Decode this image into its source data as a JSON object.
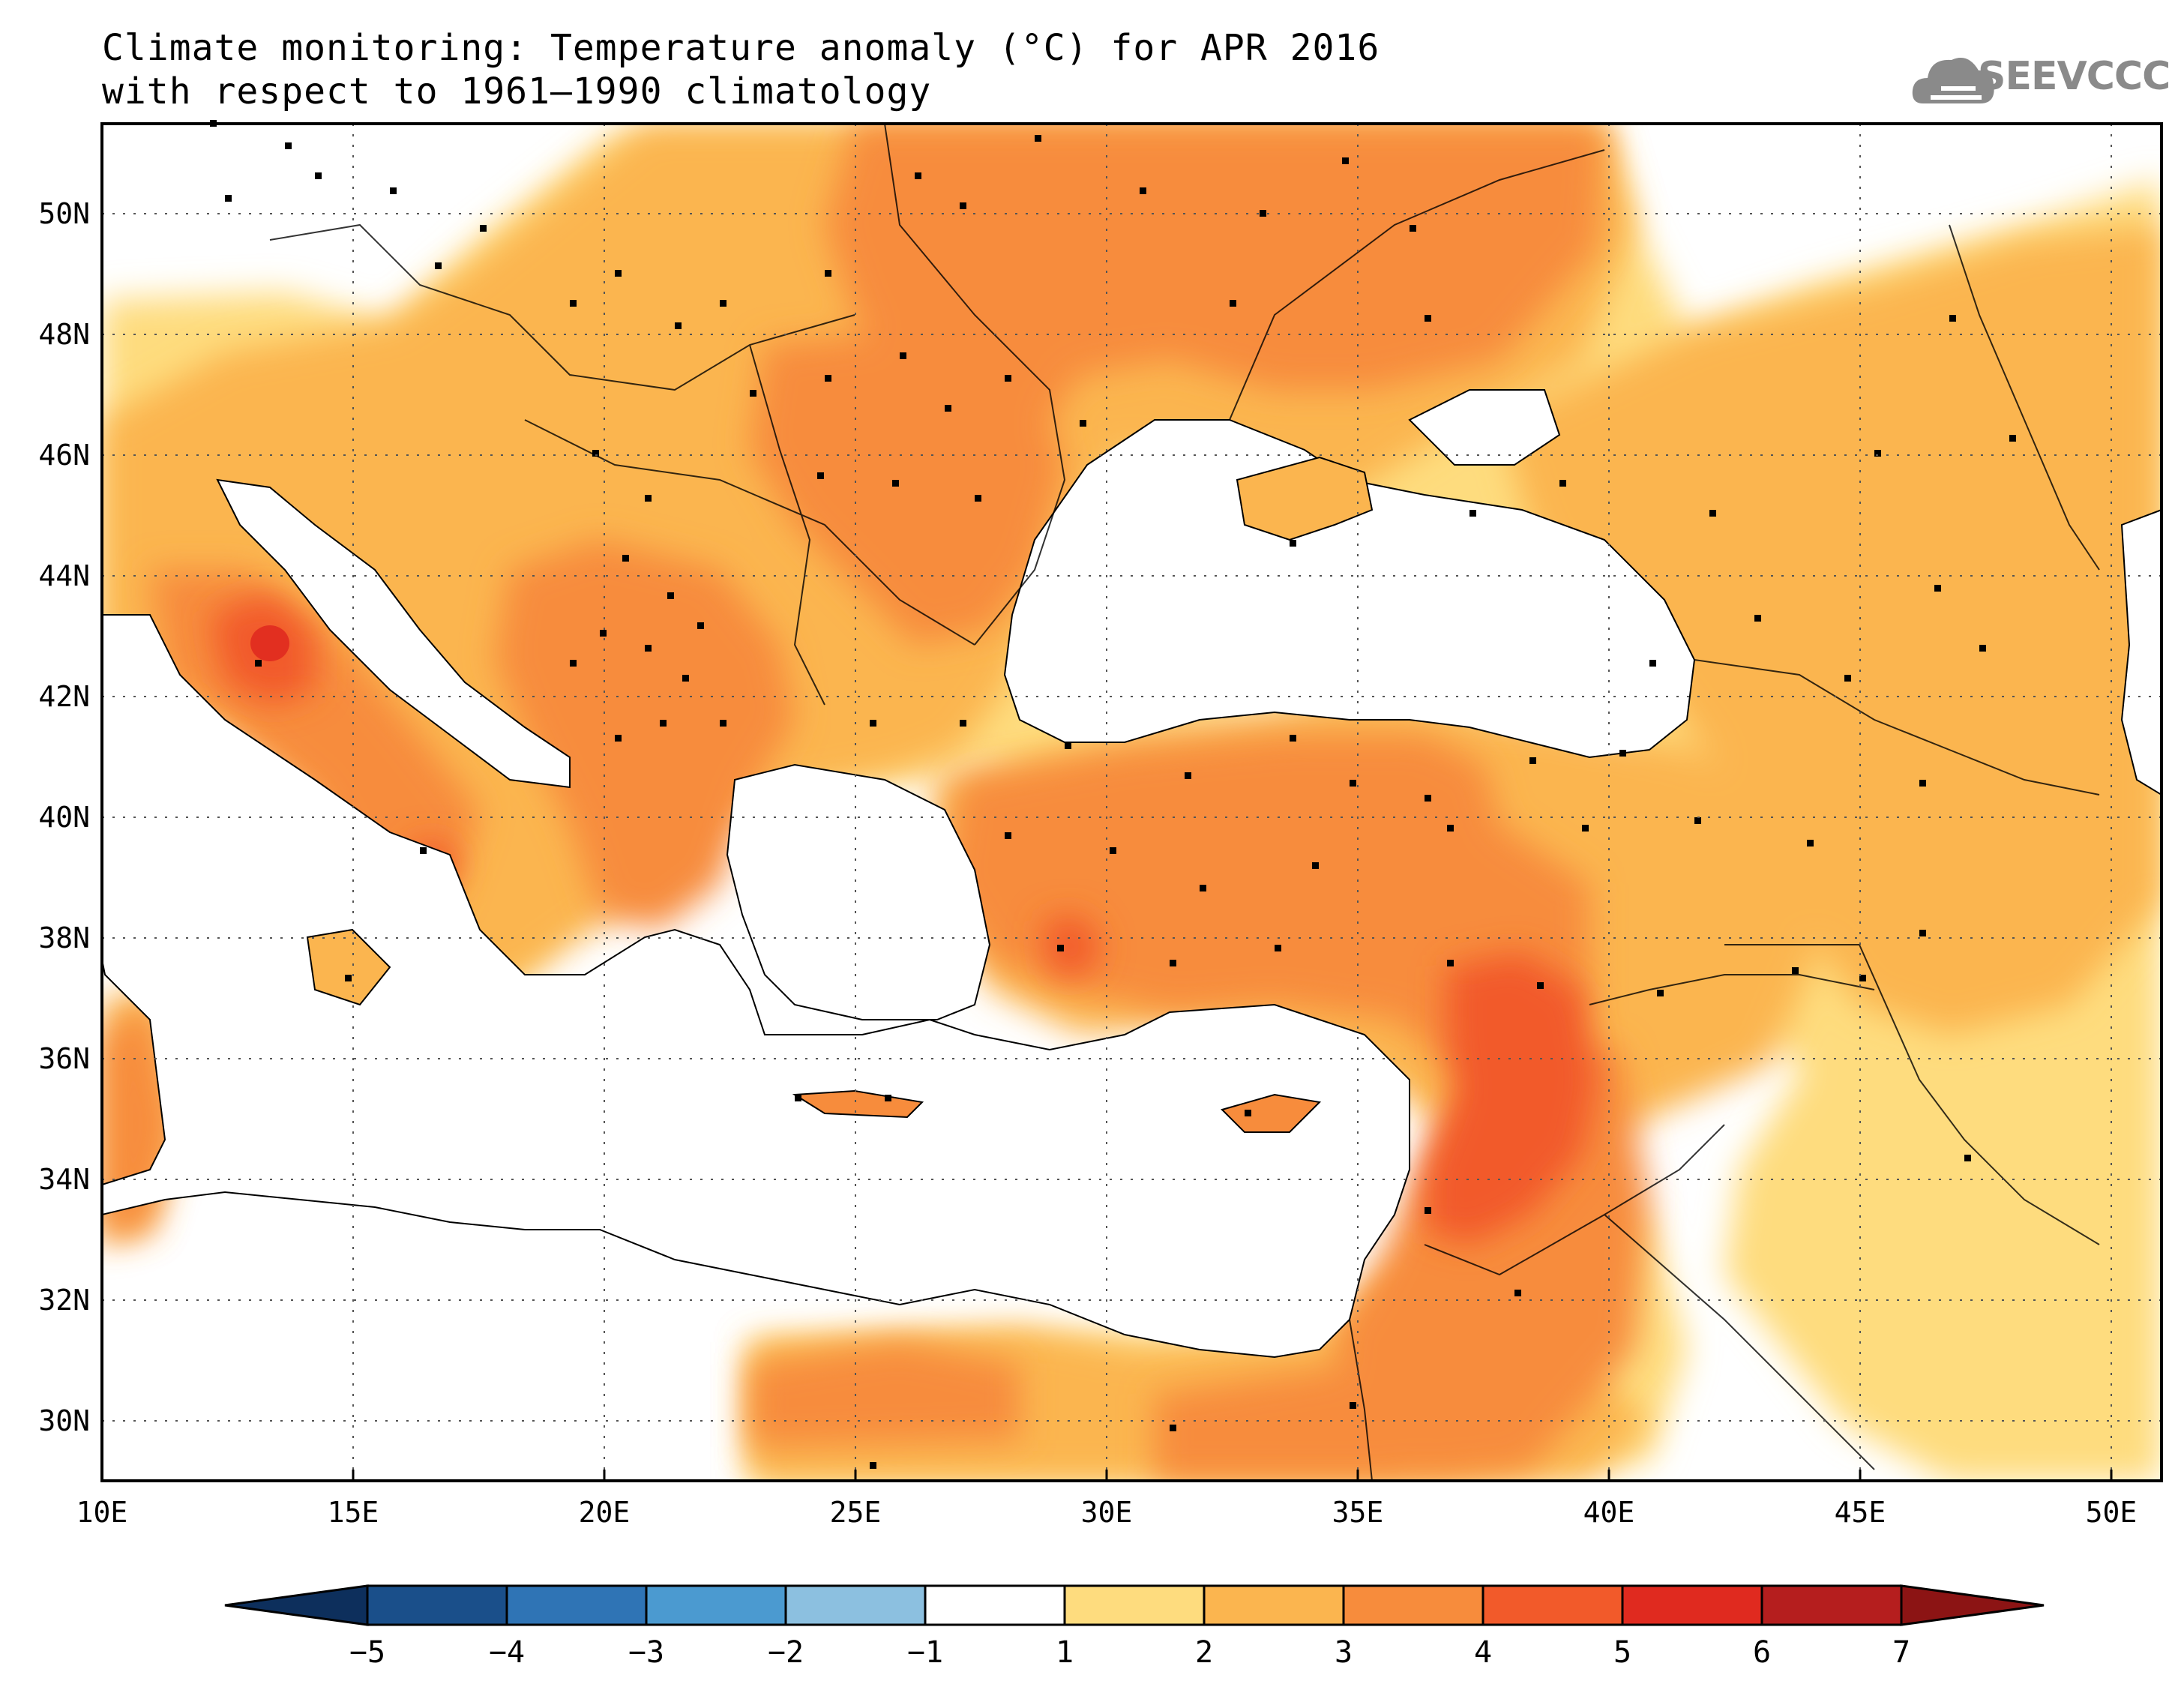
{
  "title_line1": "Climate monitoring: Temperature anomaly (°C) for APR 2016",
  "title_line2": "with respect to 1961–1990 climatology",
  "logo": {
    "text": "SEEVCCC",
    "icon": "cloud-icon"
  },
  "map": {
    "lon_range": [
      10,
      51
    ],
    "lat_range": [
      29,
      51.5
    ],
    "x_ticks": [
      "10E",
      "15E",
      "20E",
      "25E",
      "30E",
      "35E",
      "40E",
      "45E",
      "50E"
    ],
    "y_ticks": [
      "30N",
      "32N",
      "34N",
      "36N",
      "38N",
      "40N",
      "42N",
      "44N",
      "46N",
      "48N",
      "50N"
    ],
    "grid": "dotted"
  },
  "colorbar": {
    "labels": [
      "-5",
      "-4",
      "-3",
      "-2",
      "-1",
      "1",
      "2",
      "3",
      "4",
      "5",
      "6",
      "7"
    ],
    "colors": [
      "#1a4f8a",
      "#2f74b5",
      "#4b9ad0",
      "#8cc0e0",
      "#ffffff",
      "#fedc7e",
      "#fbb54f",
      "#f78c3c",
      "#f25a2a",
      "#e02a1f",
      "#b51e1e"
    ],
    "low_arrow_color": "#0d2f5c",
    "high_arrow_color": "#8c1414"
  }
}
